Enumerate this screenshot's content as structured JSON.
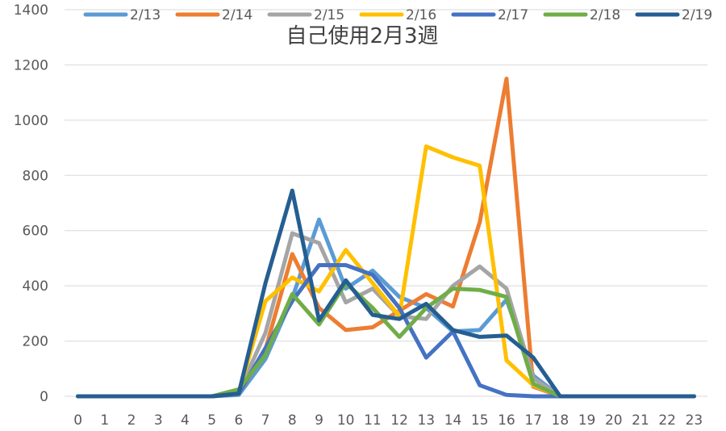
{
  "chart_data": {
    "type": "line",
    "title": "自己使用2月3週",
    "xlabel": "",
    "ylabel": "",
    "x": [
      0,
      1,
      2,
      3,
      4,
      5,
      6,
      7,
      8,
      9,
      10,
      11,
      12,
      13,
      14,
      15,
      16,
      17,
      18,
      19,
      20,
      21,
      22,
      23
    ],
    "ylim": [
      0,
      1400
    ],
    "yticks": [
      0,
      200,
      400,
      600,
      800,
      1000,
      1200,
      1400
    ],
    "grid": true,
    "legend": "top",
    "series": [
      {
        "name": "2/13",
        "color": "#5B9BD5",
        "values": [
          0,
          0,
          0,
          0,
          0,
          0,
          5,
          135,
          355,
          640,
          390,
          455,
          360,
          320,
          235,
          240,
          350,
          75,
          0,
          0,
          0,
          0,
          0,
          0
        ]
      },
      {
        "name": "2/14",
        "color": "#ED7D31",
        "values": [
          0,
          0,
          0,
          0,
          0,
          0,
          10,
          170,
          515,
          320,
          240,
          250,
          310,
          370,
          325,
          630,
          1150,
          35,
          0,
          0,
          0,
          0,
          0,
          0
        ]
      },
      {
        "name": "2/15",
        "color": "#A5A5A5",
        "values": [
          0,
          0,
          0,
          0,
          0,
          0,
          15,
          230,
          590,
          555,
          340,
          390,
          290,
          280,
          400,
          470,
          390,
          65,
          0,
          0,
          0,
          0,
          0,
          0
        ]
      },
      {
        "name": "2/16",
        "color": "#FFC000",
        "values": [
          0,
          0,
          0,
          0,
          0,
          0,
          15,
          345,
          430,
          380,
          530,
          410,
          290,
          905,
          865,
          835,
          130,
          40,
          0,
          0,
          0,
          0,
          0,
          0
        ]
      },
      {
        "name": "2/17",
        "color": "#4472C4",
        "values": [
          0,
          0,
          0,
          0,
          0,
          0,
          10,
          175,
          345,
          475,
          475,
          440,
          320,
          140,
          235,
          40,
          5,
          0,
          0,
          0,
          0,
          0,
          0,
          0
        ]
      },
      {
        "name": "2/18",
        "color": "#70AD47",
        "values": [
          0,
          0,
          0,
          0,
          0,
          0,
          25,
          150,
          370,
          260,
          410,
          320,
          215,
          320,
          390,
          385,
          360,
          45,
          0,
          0,
          0,
          0,
          0,
          0
        ]
      },
      {
        "name": "2/19",
        "color": "#255E91",
        "values": [
          0,
          0,
          0,
          0,
          0,
          0,
          10,
          410,
          745,
          275,
          420,
          295,
          280,
          335,
          240,
          215,
          220,
          140,
          0,
          0,
          0,
          0,
          0,
          0
        ]
      }
    ]
  }
}
